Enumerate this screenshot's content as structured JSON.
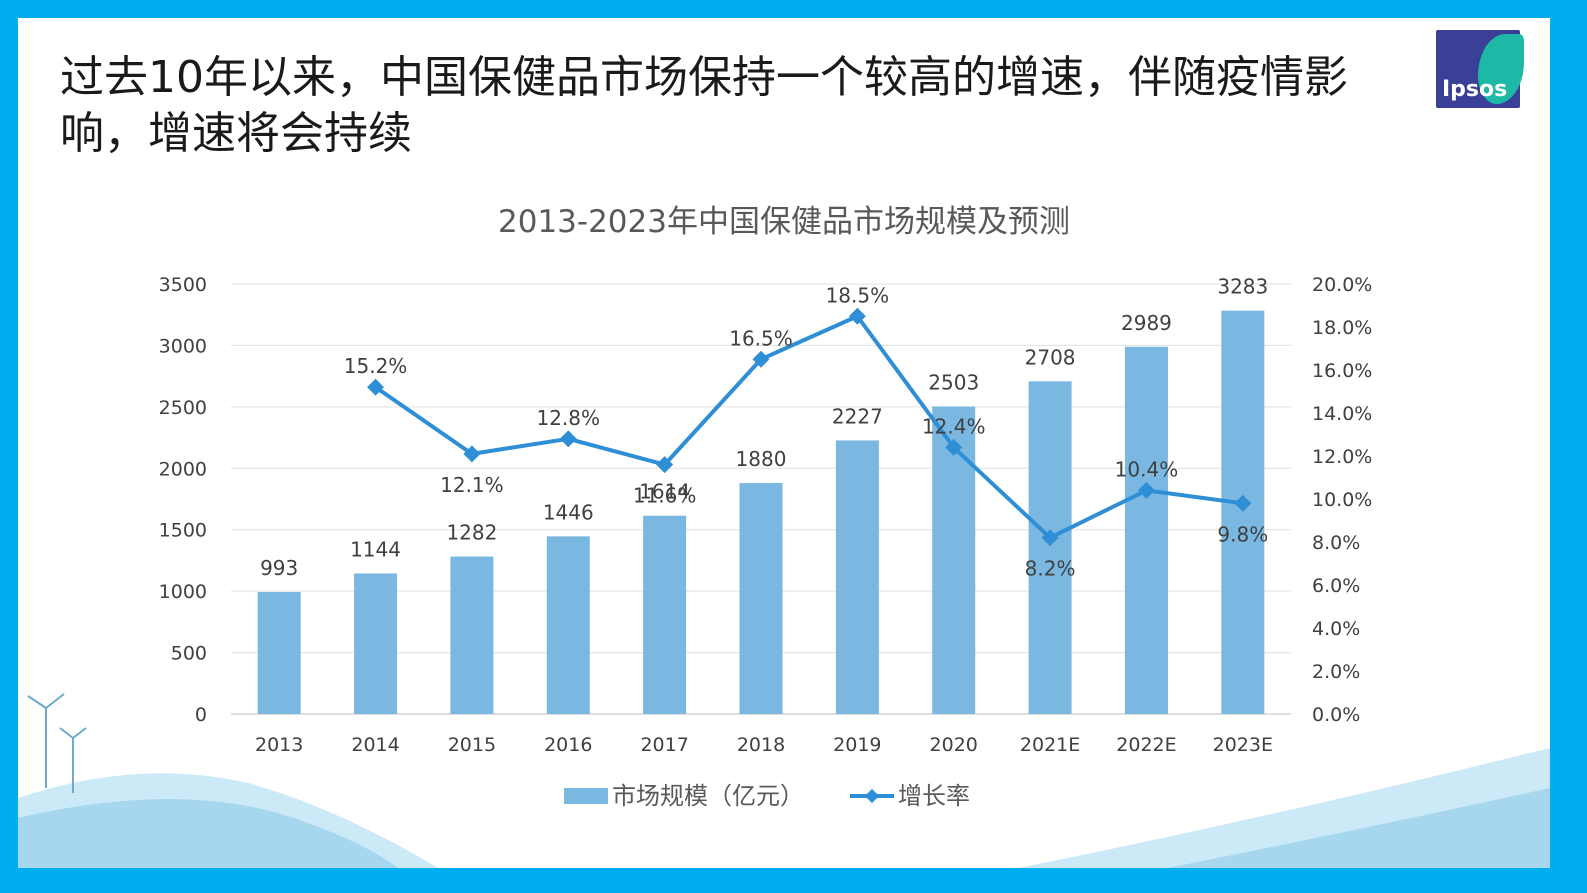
{
  "headline": "过去10年以来，中国保健品市场保持一个较高的增速，伴随疫情影响，增速将会持续",
  "logo_text": "Ipsos",
  "colors": {
    "frame": "#00AEEF",
    "bar": "#7AB8E2",
    "line": "#2E8FD6",
    "logo": "#3A3F97",
    "logo_accent": "#1EB8A6"
  },
  "chart_data": {
    "type": "bar",
    "title": "2013-2023年中国保健品市场规模及预测",
    "categories": [
      "2013",
      "2014",
      "2015",
      "2016",
      "2017",
      "2018",
      "2019",
      "2020",
      "2021E",
      "2022E",
      "2023E"
    ],
    "series": [
      {
        "name": "市场规模（亿元）",
        "type": "bar",
        "axis": "left",
        "values": [
          993,
          1144,
          1282,
          1446,
          1614,
          1880,
          2227,
          2503,
          2708,
          2989,
          3283
        ],
        "labels": [
          "993",
          "1144",
          "1282",
          "1446",
          "1614",
          "1880",
          "2227",
          "2503",
          "2708",
          "2989",
          "3283"
        ]
      },
      {
        "name": "增长率",
        "type": "line",
        "axis": "right",
        "values": [
          null,
          15.2,
          12.1,
          12.8,
          11.6,
          16.5,
          18.5,
          12.4,
          8.2,
          10.4,
          9.8
        ],
        "labels": [
          "",
          "15.2%",
          "12.1%",
          "12.8%",
          "11.6%",
          "16.5%",
          "18.5%",
          "12.4%",
          "8.2%",
          "10.4%",
          "9.8%"
        ]
      }
    ],
    "y_left": {
      "range": [
        0,
        3500
      ],
      "ticks": [
        "0",
        "500",
        "1000",
        "1500",
        "2000",
        "2500",
        "3000",
        "3500"
      ]
    },
    "y_right": {
      "range": [
        0,
        20
      ],
      "ticks": [
        "0.0%",
        "2.0%",
        "4.0%",
        "6.0%",
        "8.0%",
        "10.0%",
        "12.0%",
        "14.0%",
        "16.0%",
        "18.0%",
        "20.0%"
      ]
    },
    "grid": true,
    "legend_position": "bottom"
  }
}
